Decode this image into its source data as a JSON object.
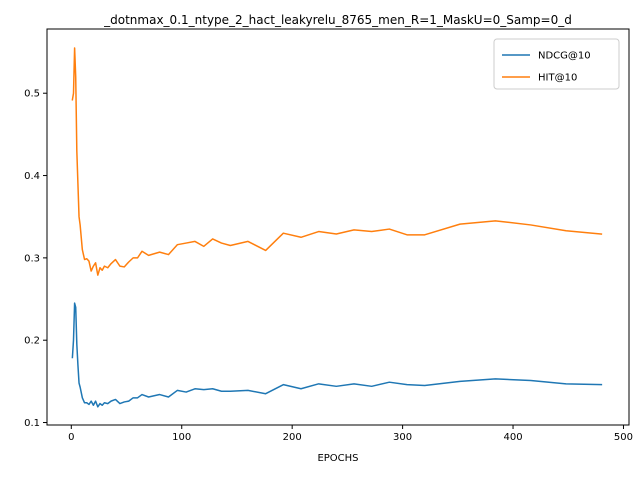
{
  "chart_data": {
    "type": "line",
    "title": "_dotnmax_0.1_ntype_2_hact_leakyrelu_8765_men_R=1_MaskU=0_Samp=0_d",
    "xlabel": "EPOCHS",
    "ylabel": "",
    "xlim": [
      -22,
      505
    ],
    "ylim": [
      0.097,
      0.578
    ],
    "xticks": [
      0,
      100,
      200,
      300,
      400,
      500
    ],
    "yticks": [
      0.1,
      0.2,
      0.3,
      0.4,
      0.5
    ],
    "xtick_labels": [
      "0",
      "100",
      "200",
      "300",
      "400",
      "500"
    ],
    "ytick_labels": [
      "0.1",
      "0.2",
      "0.3",
      "0.4",
      "0.5"
    ],
    "grid": false,
    "legend_position": "top-right",
    "series": [
      {
        "name": "NDCG@10",
        "color": "#1f77b4",
        "points": [
          [
            1,
            0.179
          ],
          [
            2,
            0.2
          ],
          [
            3,
            0.245
          ],
          [
            4,
            0.24
          ],
          [
            5,
            0.195
          ],
          [
            6,
            0.17
          ],
          [
            7,
            0.148
          ],
          [
            8,
            0.143
          ],
          [
            10,
            0.13
          ],
          [
            12,
            0.124
          ],
          [
            14,
            0.124
          ],
          [
            16,
            0.122
          ],
          [
            18,
            0.126
          ],
          [
            20,
            0.121
          ],
          [
            22,
            0.126
          ],
          [
            24,
            0.119
          ],
          [
            26,
            0.123
          ],
          [
            28,
            0.121
          ],
          [
            30,
            0.124
          ],
          [
            33,
            0.123
          ],
          [
            36,
            0.126
          ],
          [
            40,
            0.128
          ],
          [
            44,
            0.123
          ],
          [
            48,
            0.125
          ],
          [
            52,
            0.126
          ],
          [
            56,
            0.13
          ],
          [
            60,
            0.13
          ],
          [
            64,
            0.134
          ],
          [
            70,
            0.131
          ],
          [
            80,
            0.134
          ],
          [
            88,
            0.131
          ],
          [
            96,
            0.139
          ],
          [
            104,
            0.137
          ],
          [
            112,
            0.141
          ],
          [
            120,
            0.14
          ],
          [
            128,
            0.141
          ],
          [
            136,
            0.138
          ],
          [
            144,
            0.138
          ],
          [
            160,
            0.139
          ],
          [
            176,
            0.135
          ],
          [
            192,
            0.146
          ],
          [
            208,
            0.141
          ],
          [
            224,
            0.147
          ],
          [
            240,
            0.144
          ],
          [
            256,
            0.147
          ],
          [
            272,
            0.144
          ],
          [
            288,
            0.149
          ],
          [
            304,
            0.146
          ],
          [
            320,
            0.145
          ],
          [
            352,
            0.15
          ],
          [
            384,
            0.153
          ],
          [
            416,
            0.151
          ],
          [
            448,
            0.147
          ],
          [
            480,
            0.146
          ]
        ]
      },
      {
        "name": "HIT@10",
        "color": "#ff7f0e",
        "points": [
          [
            1,
            0.492
          ],
          [
            2,
            0.5
          ],
          [
            3,
            0.555
          ],
          [
            4,
            0.52
          ],
          [
            5,
            0.43
          ],
          [
            6,
            0.39
          ],
          [
            7,
            0.35
          ],
          [
            8,
            0.34
          ],
          [
            10,
            0.31
          ],
          [
            12,
            0.298
          ],
          [
            14,
            0.299
          ],
          [
            16,
            0.296
          ],
          [
            18,
            0.284
          ],
          [
            20,
            0.29
          ],
          [
            22,
            0.294
          ],
          [
            24,
            0.279
          ],
          [
            26,
            0.288
          ],
          [
            28,
            0.285
          ],
          [
            30,
            0.29
          ],
          [
            33,
            0.288
          ],
          [
            36,
            0.293
          ],
          [
            40,
            0.298
          ],
          [
            44,
            0.29
          ],
          [
            48,
            0.289
          ],
          [
            52,
            0.295
          ],
          [
            56,
            0.3
          ],
          [
            60,
            0.3
          ],
          [
            64,
            0.308
          ],
          [
            70,
            0.303
          ],
          [
            80,
            0.307
          ],
          [
            88,
            0.304
          ],
          [
            96,
            0.316
          ],
          [
            104,
            0.318
          ],
          [
            112,
            0.32
          ],
          [
            120,
            0.314
          ],
          [
            128,
            0.323
          ],
          [
            136,
            0.318
          ],
          [
            144,
            0.315
          ],
          [
            160,
            0.32
          ],
          [
            176,
            0.309
          ],
          [
            192,
            0.33
          ],
          [
            208,
            0.325
          ],
          [
            224,
            0.332
          ],
          [
            240,
            0.329
          ],
          [
            256,
            0.334
          ],
          [
            272,
            0.332
          ],
          [
            288,
            0.335
          ],
          [
            304,
            0.328
          ],
          [
            320,
            0.328
          ],
          [
            352,
            0.341
          ],
          [
            384,
            0.345
          ],
          [
            416,
            0.34
          ],
          [
            448,
            0.333
          ],
          [
            480,
            0.329
          ]
        ]
      }
    ]
  }
}
